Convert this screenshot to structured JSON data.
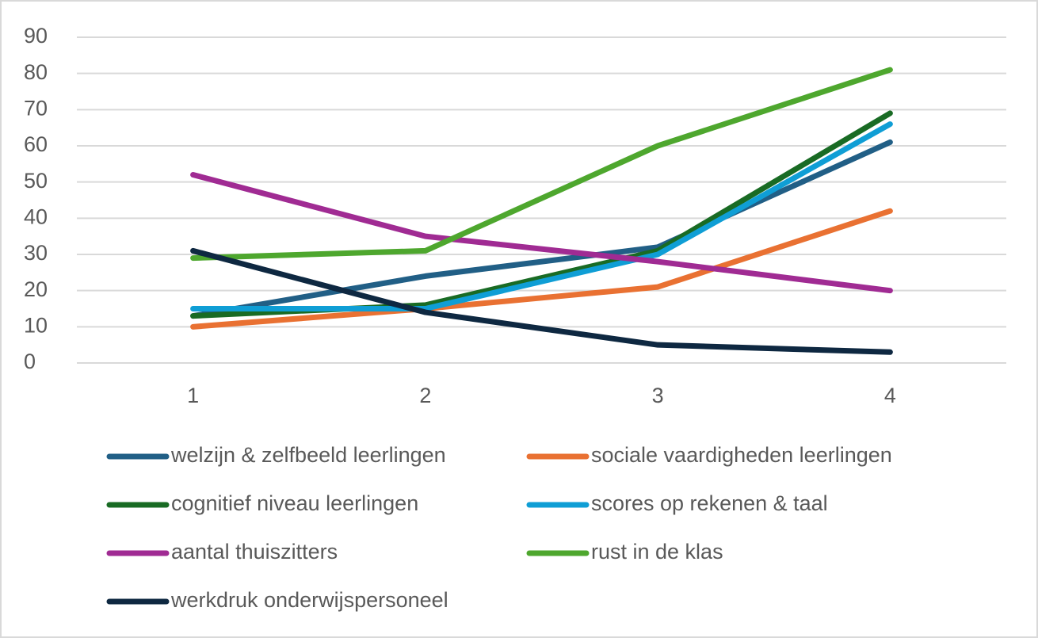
{
  "chart_data": {
    "type": "line",
    "categories": [
      "1",
      "2",
      "3",
      "4"
    ],
    "series": [
      {
        "name": "welzijn & zelfbeeld leerlingen",
        "color": "#215f86",
        "values": [
          13,
          24,
          32,
          61
        ]
      },
      {
        "name": "sociale vaardigheden leerlingen",
        "color": "#e97132",
        "values": [
          10,
          15,
          21,
          42
        ]
      },
      {
        "name": "cognitief niveau leerlingen",
        "color": "#196b24",
        "values": [
          13,
          16,
          31,
          69
        ]
      },
      {
        "name": "scores op rekenen & taal",
        "color": "#0f9ed5",
        "values": [
          15,
          15,
          30,
          66
        ]
      },
      {
        "name": "aantal thuiszitters",
        "color": "#a02b93",
        "values": [
          52,
          35,
          28,
          20
        ]
      },
      {
        "name": "rust in de klas",
        "color": "#4ea72e",
        "values": [
          29,
          31,
          60,
          81
        ]
      },
      {
        "name": "werkdruk onderwijspersoneel",
        "color": "#0e2841",
        "values": [
          31,
          14,
          5,
          3
        ]
      }
    ],
    "ylim": [
      0,
      90
    ],
    "yticks": [
      0,
      10,
      20,
      30,
      40,
      50,
      60,
      70,
      80,
      90
    ],
    "grid": true,
    "legend": "bottom"
  }
}
